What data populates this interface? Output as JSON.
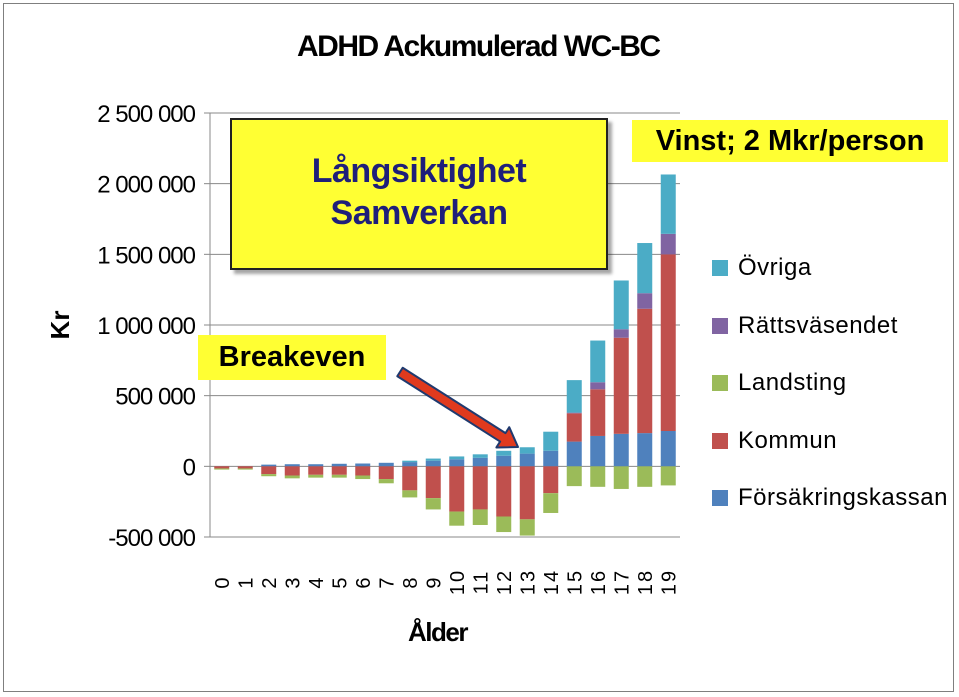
{
  "chart_data": {
    "type": "bar",
    "stacked": true,
    "title": "ADHD Ackumulerad WC-BC",
    "xlabel": "Ålder",
    "ylabel": "Kr",
    "ylim": [
      -500000,
      2500000
    ],
    "yticks": [
      -500000,
      0,
      500000,
      1000000,
      1500000,
      2000000,
      2500000
    ],
    "ytick_labels": [
      "-500 000",
      "0",
      "500 000",
      "1 000 000",
      "1 500 000",
      "2 000 000",
      "2 500 000"
    ],
    "grid": "horizontal",
    "legend_position": "right",
    "categories": [
      "0",
      "1",
      "2",
      "3",
      "4",
      "5",
      "6",
      "7",
      "8",
      "9",
      "10",
      "11",
      "12",
      "13",
      "14",
      "15",
      "16",
      "17",
      "18",
      "19"
    ],
    "series": [
      {
        "name": "Försäkringskassan",
        "color": "#4f81bd",
        "values": [
          0,
          0,
          12000,
          15000,
          15000,
          18000,
          20000,
          25000,
          30000,
          40000,
          50000,
          60000,
          75000,
          90000,
          110000,
          175000,
          215000,
          230000,
          235000,
          250000
        ]
      },
      {
        "name": "Kommun",
        "color": "#c0504d",
        "values": [
          -15000,
          -15000,
          -55000,
          -65000,
          -60000,
          -60000,
          -65000,
          -90000,
          -170000,
          -225000,
          -320000,
          -305000,
          -355000,
          -375000,
          -190000,
          200000,
          330000,
          680000,
          880000,
          1250000
        ]
      },
      {
        "name": "Landsting",
        "color": "#9bbb59",
        "values": [
          -8000,
          -8000,
          -15000,
          -20000,
          -20000,
          -20000,
          -25000,
          -30000,
          -50000,
          -80000,
          -100000,
          -110000,
          -110000,
          -115000,
          -140000,
          -140000,
          -145000,
          -160000,
          -145000,
          -135000
        ]
      },
      {
        "name": "Rättsväsendet",
        "color": "#8064a2",
        "values": [
          0,
          0,
          0,
          0,
          0,
          0,
          0,
          0,
          0,
          0,
          0,
          0,
          0,
          0,
          0,
          5000,
          50000,
          60000,
          110000,
          145000
        ]
      },
      {
        "name": "Övriga",
        "color": "#4bacc6",
        "values": [
          0,
          0,
          0,
          0,
          0,
          0,
          0,
          0,
          10000,
          15000,
          20000,
          25000,
          35000,
          45000,
          135000,
          230000,
          295000,
          345000,
          355000,
          420000
        ]
      }
    ],
    "annotations": {
      "box_long_line1": "Långsiktighet",
      "box_long_line2": "Samverkan",
      "breakeven": "Breakeven",
      "vinst": "Vinst; 2 Mkr/person"
    }
  },
  "colors": {
    "annotation_box": "#ffff33",
    "arrow_fill": "#e03a1e",
    "arrow_stroke": "#1f3a6f",
    "annotation_text": "#1f1f7a"
  }
}
